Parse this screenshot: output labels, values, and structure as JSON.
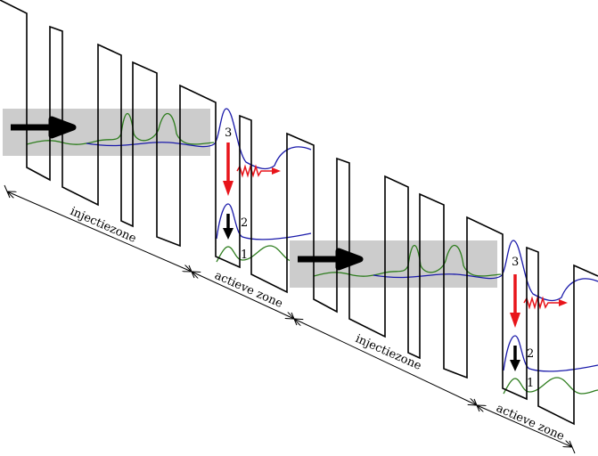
{
  "labels": {
    "injection_zone": "injectiezone",
    "active_zone": "actieve zone",
    "level_1": "1",
    "level_2": "2",
    "level_3": "3"
  },
  "colors": {
    "band_edge": "#000000",
    "upper_wavefunction": "#1a1aaa",
    "lower_wavefunction": "#2e7d1e",
    "transition_arrow": "#e8141a",
    "injection_band": "#cccccc"
  },
  "icons": [
    "electron-flow-arrow",
    "radiative-transition-arrow",
    "photon-emission-arrow",
    "relaxation-arrow"
  ]
}
